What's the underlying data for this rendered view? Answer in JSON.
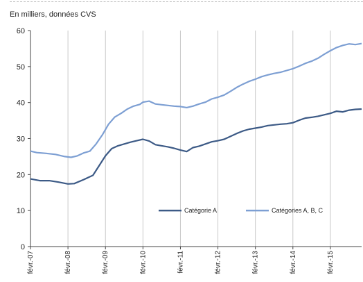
{
  "chart_data": {
    "type": "line",
    "subtitle": "En milliers, données CVS",
    "ylim": [
      0,
      60
    ],
    "yticks": [
      0,
      10,
      20,
      30,
      40,
      50,
      60
    ],
    "xlim": [
      0,
      106
    ],
    "x_ticks": [
      {
        "at": 0,
        "label": "févr.-07"
      },
      {
        "at": 12,
        "label": "févr.-08"
      },
      {
        "at": 24,
        "label": "févr.-09"
      },
      {
        "at": 36,
        "label": "févr.-10"
      },
      {
        "at": 48,
        "label": "févr.-11"
      },
      {
        "at": 60,
        "label": "févr.-12"
      },
      {
        "at": 72,
        "label": "févr.-13"
      },
      {
        "at": 84,
        "label": "févr.-14"
      },
      {
        "at": 96,
        "label": "févr.-15"
      }
    ],
    "grid": "vertical",
    "legend_position": "bottom-right",
    "series": [
      {
        "name": "Catégorie A",
        "color": "#3c5a86",
        "points": [
          [
            0,
            18.8
          ],
          [
            3,
            18.3
          ],
          [
            6,
            18.3
          ],
          [
            9,
            17.9
          ],
          [
            12,
            17.4
          ],
          [
            14,
            17.5
          ],
          [
            17,
            18.6
          ],
          [
            20,
            19.8
          ],
          [
            22,
            22.5
          ],
          [
            24,
            25.2
          ],
          [
            26,
            27.2
          ],
          [
            28,
            28
          ],
          [
            30,
            28.5
          ],
          [
            32,
            29
          ],
          [
            34,
            29.4
          ],
          [
            36,
            29.8
          ],
          [
            38,
            29.3
          ],
          [
            40,
            28.3
          ],
          [
            42,
            28
          ],
          [
            44,
            27.7
          ],
          [
            46,
            27.3
          ],
          [
            48,
            26.8
          ],
          [
            50,
            26.4
          ],
          [
            52,
            27.5
          ],
          [
            54,
            27.9
          ],
          [
            56,
            28.5
          ],
          [
            58,
            29.1
          ],
          [
            60,
            29.4
          ],
          [
            62,
            29.8
          ],
          [
            64,
            30.6
          ],
          [
            66,
            31.4
          ],
          [
            68,
            32.1
          ],
          [
            70,
            32.6
          ],
          [
            72,
            32.9
          ],
          [
            74,
            33.2
          ],
          [
            76,
            33.6
          ],
          [
            78,
            33.8
          ],
          [
            80,
            34
          ],
          [
            82,
            34.1
          ],
          [
            84,
            34.4
          ],
          [
            86,
            35.1
          ],
          [
            88,
            35.7
          ],
          [
            90,
            35.9
          ],
          [
            92,
            36.2
          ],
          [
            94,
            36.6
          ],
          [
            96,
            37
          ],
          [
            98,
            37.6
          ],
          [
            100,
            37.4
          ],
          [
            102,
            37.9
          ],
          [
            104,
            38.1
          ],
          [
            106,
            38.2
          ]
        ]
      },
      {
        "name": "Catégories A, B, C",
        "color": "#7d9fd3",
        "points": [
          [
            0,
            26.5
          ],
          [
            2,
            26.1
          ],
          [
            5,
            25.9
          ],
          [
            8,
            25.6
          ],
          [
            11,
            25
          ],
          [
            13,
            24.8
          ],
          [
            15,
            25.2
          ],
          [
            17,
            26
          ],
          [
            19,
            26.5
          ],
          [
            21,
            28.5
          ],
          [
            23,
            31
          ],
          [
            25,
            34
          ],
          [
            27,
            36
          ],
          [
            29,
            37
          ],
          [
            31,
            38.2
          ],
          [
            33,
            39
          ],
          [
            35,
            39.5
          ],
          [
            36,
            40.1
          ],
          [
            38,
            40.4
          ],
          [
            40,
            39.6
          ],
          [
            42,
            39.4
          ],
          [
            44,
            39.2
          ],
          [
            46,
            39
          ],
          [
            48,
            38.9
          ],
          [
            50,
            38.6
          ],
          [
            52,
            39
          ],
          [
            54,
            39.6
          ],
          [
            56,
            40.1
          ],
          [
            58,
            41
          ],
          [
            60,
            41.5
          ],
          [
            62,
            42.1
          ],
          [
            64,
            43.1
          ],
          [
            66,
            44.2
          ],
          [
            68,
            45.1
          ],
          [
            70,
            45.9
          ],
          [
            72,
            46.5
          ],
          [
            74,
            47.2
          ],
          [
            76,
            47.7
          ],
          [
            78,
            48.1
          ],
          [
            80,
            48.4
          ],
          [
            82,
            48.9
          ],
          [
            84,
            49.4
          ],
          [
            86,
            50.1
          ],
          [
            88,
            50.9
          ],
          [
            90,
            51.5
          ],
          [
            92,
            52.3
          ],
          [
            94,
            53.4
          ],
          [
            96,
            54.4
          ],
          [
            98,
            55.3
          ],
          [
            100,
            55.9
          ],
          [
            102,
            56.3
          ],
          [
            104,
            56.1
          ],
          [
            106,
            56.4
          ]
        ]
      }
    ]
  }
}
